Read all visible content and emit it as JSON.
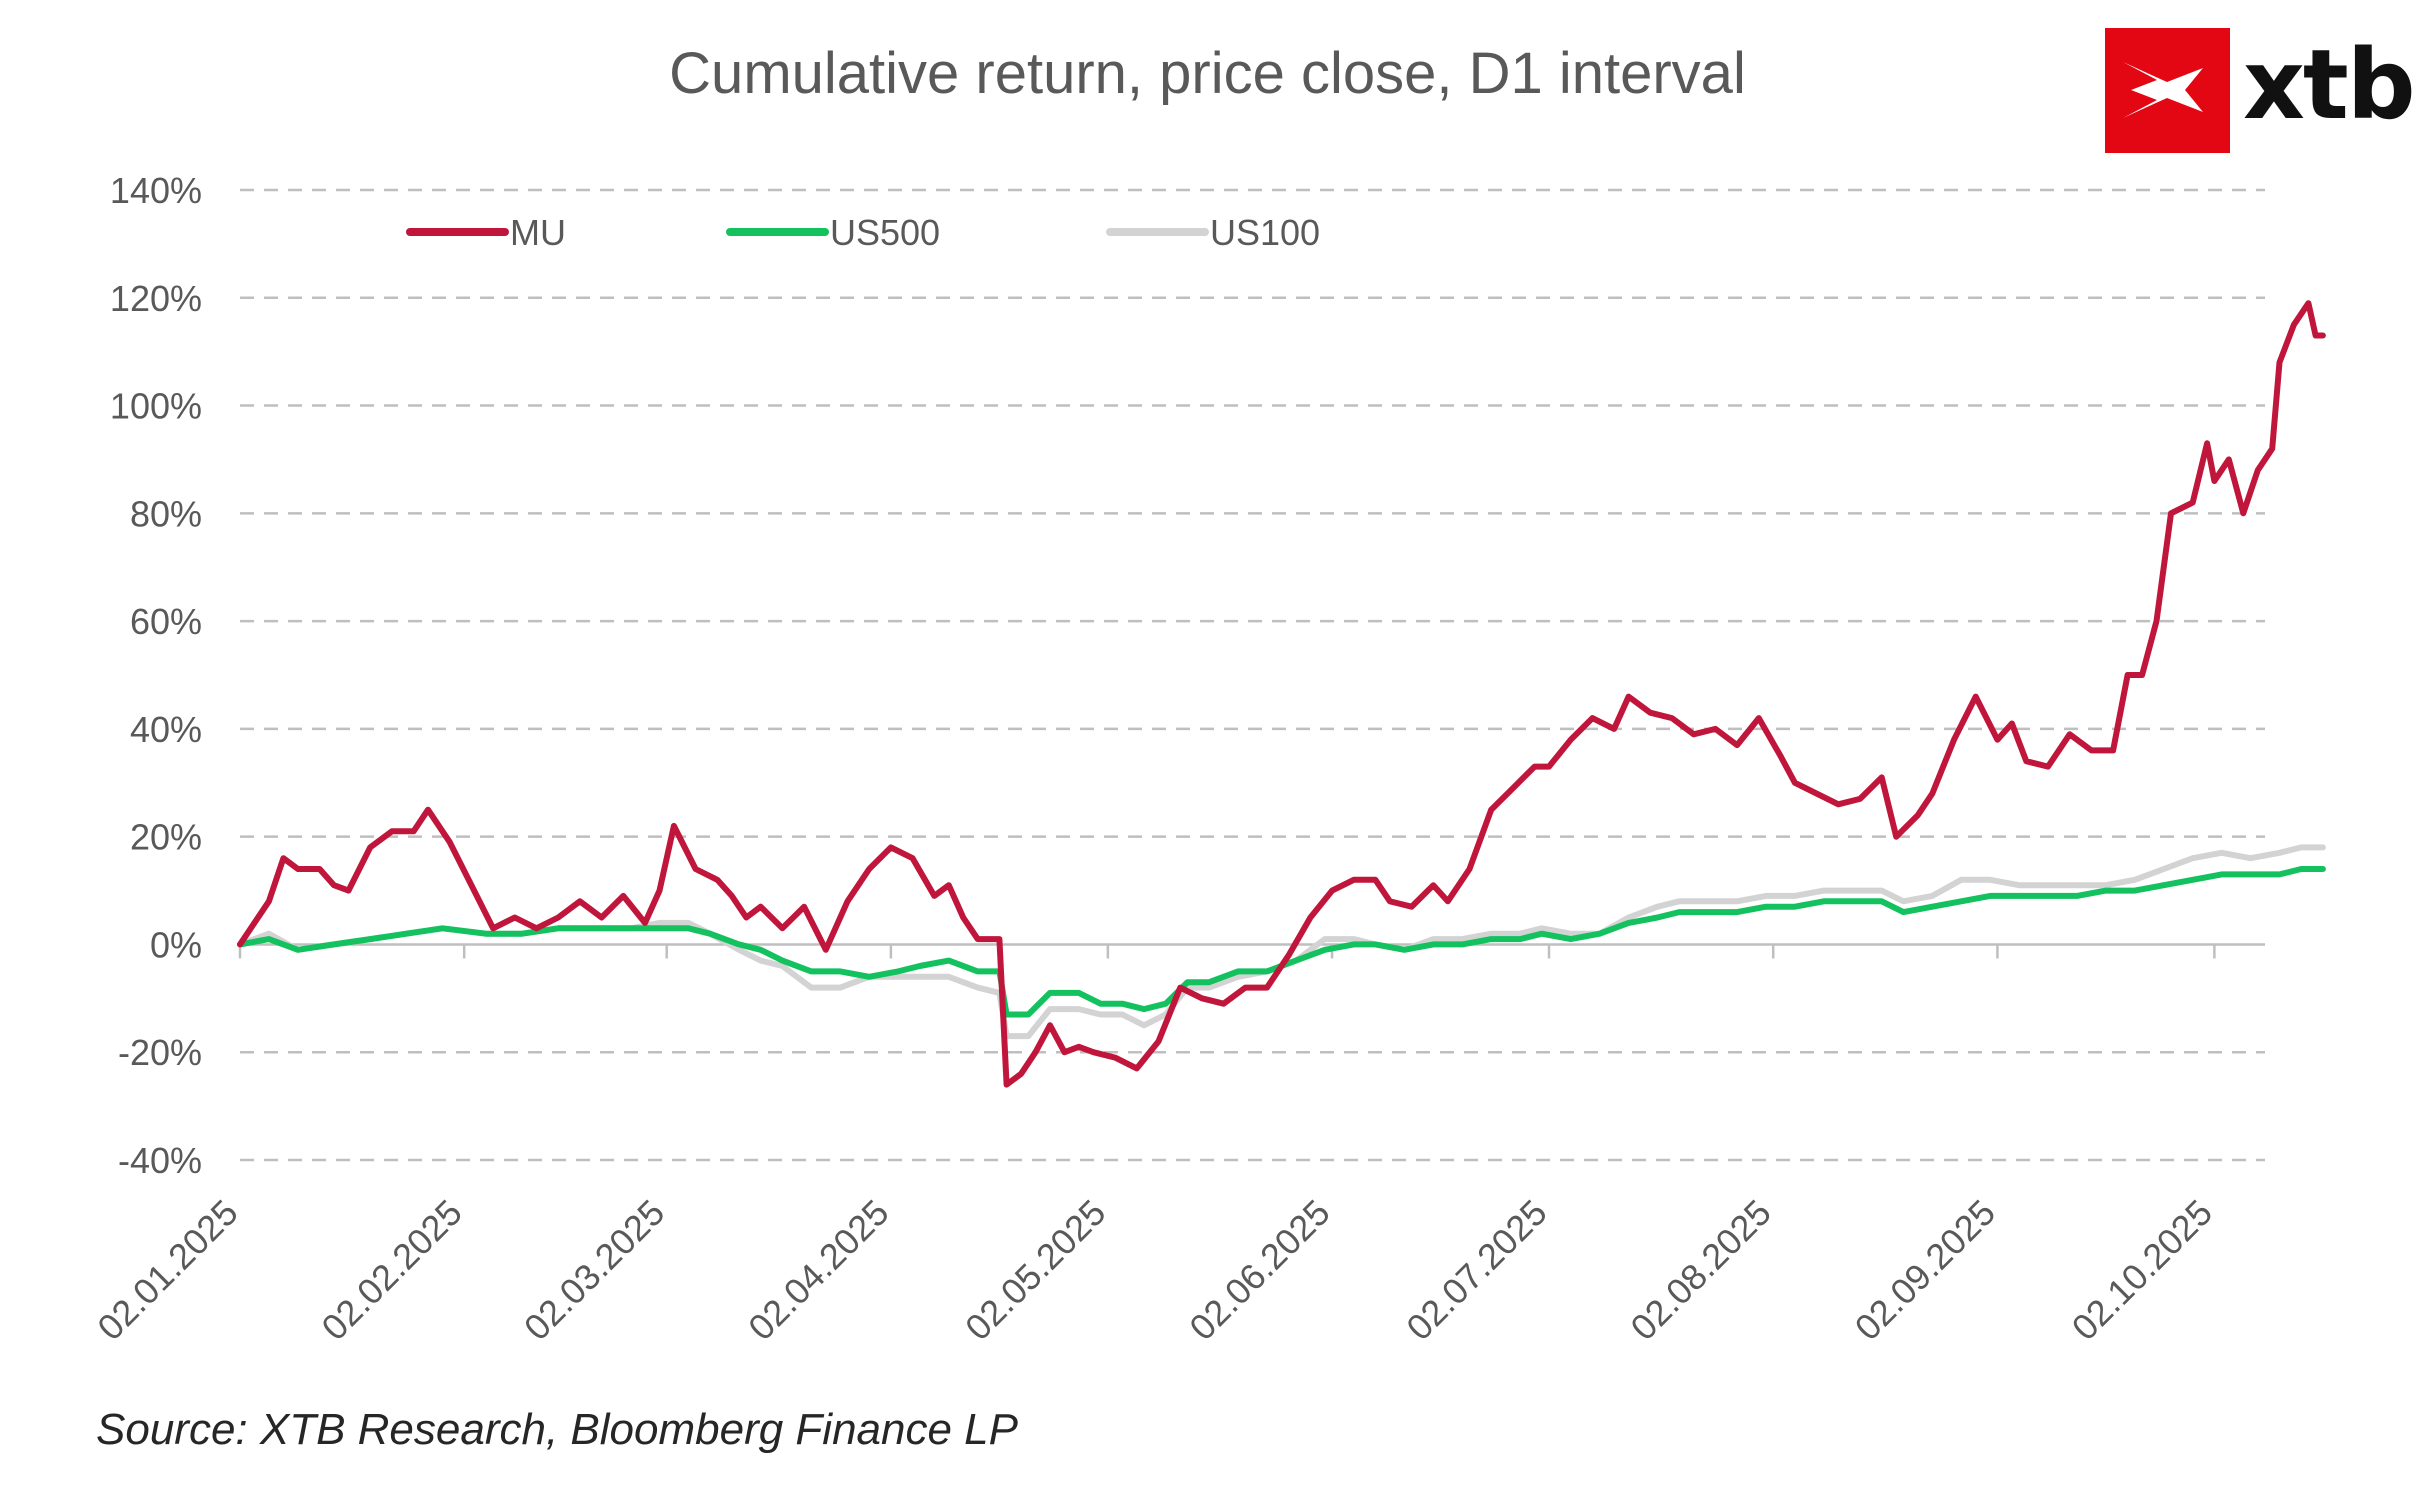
{
  "title": "Cumulative return, price close, D1 interval",
  "source": "Source: XTB Research, Bloomberg Finance LP",
  "logo": {
    "text": "xtb",
    "color": "#e30613"
  },
  "chart_data": {
    "type": "line",
    "title": "Cumulative return, price close, D1 interval",
    "xlabel": "",
    "ylabel": "",
    "ylim": [
      -40,
      140
    ],
    "yticks": [
      "-40%",
      "-20%",
      "0%",
      "20%",
      "40%",
      "60%",
      "80%",
      "100%",
      "120%",
      "140%"
    ],
    "ytick_values": [
      -40,
      -20,
      0,
      20,
      40,
      60,
      80,
      100,
      120,
      140
    ],
    "xticks": [
      "02.01.2025",
      "02.02.2025",
      "02.03.2025",
      "02.04.2025",
      "02.05.2025",
      "02.06.2025",
      "02.07.2025",
      "02.08.2025",
      "02.09.2025",
      "02.10.2025"
    ],
    "xtick_dates": [
      "2025-01-02",
      "2025-02-02",
      "2025-03-02",
      "2025-04-02",
      "2025-05-02",
      "2025-06-02",
      "2025-07-02",
      "2025-08-02",
      "2025-09-02",
      "2025-10-02"
    ],
    "xlim": [
      "2025-01-02",
      "2025-10-09"
    ],
    "grid": "horizontal dashed",
    "legend": "top-left",
    "series": [
      {
        "name": "MU",
        "color": "#c0163c",
        "points": [
          [
            "2025-01-02",
            0
          ],
          [
            "2025-01-06",
            8
          ],
          [
            "2025-01-08",
            16
          ],
          [
            "2025-01-10",
            14
          ],
          [
            "2025-01-13",
            14
          ],
          [
            "2025-01-15",
            11
          ],
          [
            "2025-01-17",
            10
          ],
          [
            "2025-01-20",
            18
          ],
          [
            "2025-01-23",
            21
          ],
          [
            "2025-01-26",
            21
          ],
          [
            "2025-01-28",
            25
          ],
          [
            "2025-01-31",
            19
          ],
          [
            "2025-02-03",
            11
          ],
          [
            "2025-02-06",
            3
          ],
          [
            "2025-02-09",
            5
          ],
          [
            "2025-02-12",
            3
          ],
          [
            "2025-02-15",
            5
          ],
          [
            "2025-02-18",
            8
          ],
          [
            "2025-02-21",
            5
          ],
          [
            "2025-02-24",
            9
          ],
          [
            "2025-02-27",
            4
          ],
          [
            "2025-03-01",
            10
          ],
          [
            "2025-03-03",
            22
          ],
          [
            "2025-03-06",
            14
          ],
          [
            "2025-03-09",
            12
          ],
          [
            "2025-03-11",
            9
          ],
          [
            "2025-03-13",
            5
          ],
          [
            "2025-03-15",
            7
          ],
          [
            "2025-03-18",
            3
          ],
          [
            "2025-03-21",
            7
          ],
          [
            "2025-03-24",
            -1
          ],
          [
            "2025-03-27",
            8
          ],
          [
            "2025-03-30",
            14
          ],
          [
            "2025-04-02",
            18
          ],
          [
            "2025-04-05",
            16
          ],
          [
            "2025-04-08",
            9
          ],
          [
            "2025-04-10",
            11
          ],
          [
            "2025-04-12",
            5
          ],
          [
            "2025-04-14",
            1
          ],
          [
            "2025-04-17",
            1
          ],
          [
            "2025-04-18",
            -26
          ],
          [
            "2025-04-20",
            -24
          ],
          [
            "2025-04-22",
            -20
          ],
          [
            "2025-04-24",
            -15
          ],
          [
            "2025-04-26",
            -20
          ],
          [
            "2025-04-28",
            -19
          ],
          [
            "2025-04-30",
            -20
          ],
          [
            "2025-05-03",
            -21
          ],
          [
            "2025-05-06",
            -23
          ],
          [
            "2025-05-09",
            -18
          ],
          [
            "2025-05-12",
            -8
          ],
          [
            "2025-05-15",
            -10
          ],
          [
            "2025-05-18",
            -11
          ],
          [
            "2025-05-21",
            -8
          ],
          [
            "2025-05-24",
            -8
          ],
          [
            "2025-05-27",
            -2
          ],
          [
            "2025-05-30",
            5
          ],
          [
            "2025-06-02",
            10
          ],
          [
            "2025-06-05",
            12
          ],
          [
            "2025-06-08",
            12
          ],
          [
            "2025-06-10",
            8
          ],
          [
            "2025-06-13",
            7
          ],
          [
            "2025-06-16",
            11
          ],
          [
            "2025-06-18",
            8
          ],
          [
            "2025-06-21",
            14
          ],
          [
            "2025-06-24",
            25
          ],
          [
            "2025-06-27",
            29
          ],
          [
            "2025-06-30",
            33
          ],
          [
            "2025-07-02",
            33
          ],
          [
            "2025-07-05",
            38
          ],
          [
            "2025-07-08",
            42
          ],
          [
            "2025-07-11",
            40
          ],
          [
            "2025-07-13",
            46
          ],
          [
            "2025-07-16",
            43
          ],
          [
            "2025-07-19",
            42
          ],
          [
            "2025-07-22",
            39
          ],
          [
            "2025-07-25",
            40
          ],
          [
            "2025-07-28",
            37
          ],
          [
            "2025-07-31",
            42
          ],
          [
            "2025-08-03",
            35
          ],
          [
            "2025-08-05",
            30
          ],
          [
            "2025-08-08",
            28
          ],
          [
            "2025-08-11",
            26
          ],
          [
            "2025-08-14",
            27
          ],
          [
            "2025-08-17",
            31
          ],
          [
            "2025-08-19",
            20
          ],
          [
            "2025-08-22",
            24
          ],
          [
            "2025-08-24",
            28
          ],
          [
            "2025-08-27",
            38
          ],
          [
            "2025-08-30",
            46
          ],
          [
            "2025-09-02",
            38
          ],
          [
            "2025-09-04",
            41
          ],
          [
            "2025-09-06",
            34
          ],
          [
            "2025-09-09",
            33
          ],
          [
            "2025-09-12",
            39
          ],
          [
            "2025-09-15",
            36
          ],
          [
            "2025-09-18",
            36
          ],
          [
            "2025-09-20",
            50
          ],
          [
            "2025-09-22",
            50
          ],
          [
            "2025-09-24",
            60
          ],
          [
            "2025-09-26",
            80
          ],
          [
            "2025-09-29",
            82
          ],
          [
            "2025-10-01",
            93
          ],
          [
            "2025-10-02",
            86
          ],
          [
            "2025-10-04",
            90
          ],
          [
            "2025-10-06",
            80
          ],
          [
            "2025-10-08",
            88
          ],
          [
            "2025-10-10",
            92
          ],
          [
            "2025-10-11",
            108
          ],
          [
            "2025-10-13",
            115
          ],
          [
            "2025-10-15",
            119
          ],
          [
            "2025-10-16",
            113
          ],
          [
            "2025-10-17",
            113
          ]
        ]
      },
      {
        "name": "US500",
        "color": "#13c15e",
        "points": [
          [
            "2025-01-02",
            0
          ],
          [
            "2025-01-06",
            1
          ],
          [
            "2025-01-10",
            -1
          ],
          [
            "2025-01-15",
            0
          ],
          [
            "2025-01-20",
            1
          ],
          [
            "2025-01-25",
            2
          ],
          [
            "2025-01-30",
            3
          ],
          [
            "2025-02-05",
            2
          ],
          [
            "2025-02-10",
            2
          ],
          [
            "2025-02-15",
            3
          ],
          [
            "2025-02-20",
            3
          ],
          [
            "2025-02-25",
            3
          ],
          [
            "2025-03-01",
            3
          ],
          [
            "2025-03-05",
            3
          ],
          [
            "2025-03-08",
            2
          ],
          [
            "2025-03-12",
            0
          ],
          [
            "2025-03-15",
            -1
          ],
          [
            "2025-03-18",
            -3
          ],
          [
            "2025-03-22",
            -5
          ],
          [
            "2025-03-26",
            -5
          ],
          [
            "2025-03-30",
            -6
          ],
          [
            "2025-04-03",
            -5
          ],
          [
            "2025-04-06",
            -4
          ],
          [
            "2025-04-10",
            -3
          ],
          [
            "2025-04-14",
            -5
          ],
          [
            "2025-04-17",
            -5
          ],
          [
            "2025-04-18",
            -13
          ],
          [
            "2025-04-21",
            -13
          ],
          [
            "2025-04-24",
            -9
          ],
          [
            "2025-04-28",
            -9
          ],
          [
            "2025-05-01",
            -11
          ],
          [
            "2025-05-04",
            -11
          ],
          [
            "2025-05-07",
            -12
          ],
          [
            "2025-05-10",
            -11
          ],
          [
            "2025-05-13",
            -7
          ],
          [
            "2025-05-16",
            -7
          ],
          [
            "2025-05-20",
            -5
          ],
          [
            "2025-05-24",
            -5
          ],
          [
            "2025-05-28",
            -3
          ],
          [
            "2025-06-01",
            -1
          ],
          [
            "2025-06-05",
            0
          ],
          [
            "2025-06-08",
            0
          ],
          [
            "2025-06-12",
            -1
          ],
          [
            "2025-06-16",
            0
          ],
          [
            "2025-06-20",
            0
          ],
          [
            "2025-06-24",
            1
          ],
          [
            "2025-06-28",
            1
          ],
          [
            "2025-07-01",
            2
          ],
          [
            "2025-07-05",
            1
          ],
          [
            "2025-07-09",
            2
          ],
          [
            "2025-07-13",
            4
          ],
          [
            "2025-07-17",
            5
          ],
          [
            "2025-07-20",
            6
          ],
          [
            "2025-07-24",
            6
          ],
          [
            "2025-07-28",
            6
          ],
          [
            "2025-08-01",
            7
          ],
          [
            "2025-08-05",
            7
          ],
          [
            "2025-08-09",
            8
          ],
          [
            "2025-08-13",
            8
          ],
          [
            "2025-08-17",
            8
          ],
          [
            "2025-08-20",
            6
          ],
          [
            "2025-08-24",
            7
          ],
          [
            "2025-08-28",
            8
          ],
          [
            "2025-09-01",
            9
          ],
          [
            "2025-09-05",
            9
          ],
          [
            "2025-09-09",
            9
          ],
          [
            "2025-09-13",
            9
          ],
          [
            "2025-09-17",
            10
          ],
          [
            "2025-09-21",
            10
          ],
          [
            "2025-09-25",
            11
          ],
          [
            "2025-09-29",
            12
          ],
          [
            "2025-10-03",
            13
          ],
          [
            "2025-10-07",
            13
          ],
          [
            "2025-10-11",
            13
          ],
          [
            "2025-10-14",
            14
          ],
          [
            "2025-10-17",
            14
          ]
        ]
      },
      {
        "name": "US100",
        "color": "#d3d3d3",
        "points": [
          [
            "2025-01-02",
            0
          ],
          [
            "2025-01-06",
            2
          ],
          [
            "2025-01-10",
            -1
          ],
          [
            "2025-01-15",
            0
          ],
          [
            "2025-01-20",
            1
          ],
          [
            "2025-01-25",
            2
          ],
          [
            "2025-01-30",
            3
          ],
          [
            "2025-02-05",
            2
          ],
          [
            "2025-02-10",
            2
          ],
          [
            "2025-02-15",
            3
          ],
          [
            "2025-02-20",
            3
          ],
          [
            "2025-02-25",
            3
          ],
          [
            "2025-03-01",
            4
          ],
          [
            "2025-03-05",
            4
          ],
          [
            "2025-03-08",
            2
          ],
          [
            "2025-03-12",
            -1
          ],
          [
            "2025-03-15",
            -3
          ],
          [
            "2025-03-18",
            -4
          ],
          [
            "2025-03-22",
            -8
          ],
          [
            "2025-03-26",
            -8
          ],
          [
            "2025-03-30",
            -6
          ],
          [
            "2025-04-03",
            -6
          ],
          [
            "2025-04-06",
            -6
          ],
          [
            "2025-04-10",
            -6
          ],
          [
            "2025-04-14",
            -8
          ],
          [
            "2025-04-17",
            -9
          ],
          [
            "2025-04-18",
            -17
          ],
          [
            "2025-04-21",
            -17
          ],
          [
            "2025-04-24",
            -12
          ],
          [
            "2025-04-28",
            -12
          ],
          [
            "2025-05-01",
            -13
          ],
          [
            "2025-05-04",
            -13
          ],
          [
            "2025-05-07",
            -15
          ],
          [
            "2025-05-10",
            -13
          ],
          [
            "2025-05-13",
            -8
          ],
          [
            "2025-05-16",
            -8
          ],
          [
            "2025-05-20",
            -6
          ],
          [
            "2025-05-24",
            -5
          ],
          [
            "2025-05-28",
            -3
          ],
          [
            "2025-06-01",
            1
          ],
          [
            "2025-06-05",
            1
          ],
          [
            "2025-06-08",
            0
          ],
          [
            "2025-06-12",
            -1
          ],
          [
            "2025-06-16",
            1
          ],
          [
            "2025-06-20",
            1
          ],
          [
            "2025-06-24",
            2
          ],
          [
            "2025-06-28",
            2
          ],
          [
            "2025-07-01",
            3
          ],
          [
            "2025-07-05",
            2
          ],
          [
            "2025-07-09",
            2
          ],
          [
            "2025-07-13",
            5
          ],
          [
            "2025-07-17",
            7
          ],
          [
            "2025-07-20",
            8
          ],
          [
            "2025-07-24",
            8
          ],
          [
            "2025-07-28",
            8
          ],
          [
            "2025-08-01",
            9
          ],
          [
            "2025-08-05",
            9
          ],
          [
            "2025-08-09",
            10
          ],
          [
            "2025-08-13",
            10
          ],
          [
            "2025-08-17",
            10
          ],
          [
            "2025-08-20",
            8
          ],
          [
            "2025-08-24",
            9
          ],
          [
            "2025-08-28",
            12
          ],
          [
            "2025-09-01",
            12
          ],
          [
            "2025-09-05",
            11
          ],
          [
            "2025-09-09",
            11
          ],
          [
            "2025-09-13",
            11
          ],
          [
            "2025-09-17",
            11
          ],
          [
            "2025-09-21",
            12
          ],
          [
            "2025-09-25",
            14
          ],
          [
            "2025-09-29",
            16
          ],
          [
            "2025-10-03",
            17
          ],
          [
            "2025-10-07",
            16
          ],
          [
            "2025-10-11",
            17
          ],
          [
            "2025-10-14",
            18
          ],
          [
            "2025-10-17",
            18
          ]
        ]
      }
    ]
  }
}
